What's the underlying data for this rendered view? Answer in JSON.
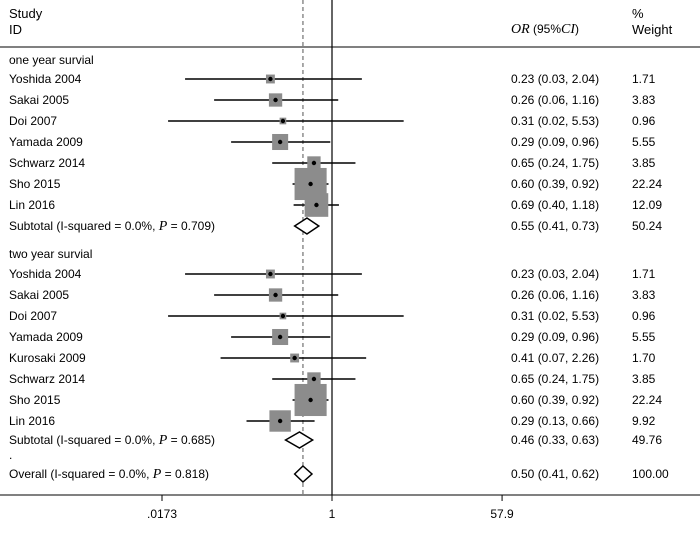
{
  "header": {
    "study_line1": "Study",
    "study_line2": "ID",
    "or_prefix": "OR",
    "ci_open": " (95%",
    "ci_italic": "CI",
    "ci_close": ")",
    "weight_line1": "%",
    "weight_line2": "Weight"
  },
  "chart_data": {
    "type": "forest",
    "scale": "log",
    "reference_line": 1,
    "pooled_line": 0.5,
    "axis_ticks": [
      {
        "value": 0.0173,
        "label": ".0173"
      },
      {
        "value": 1,
        "label": "1"
      },
      {
        "value": 57.9,
        "label": "57.9"
      }
    ],
    "xlim": [
      0.0173,
      57.9
    ],
    "groups": [
      {
        "title": "one year survial",
        "studies": [
          {
            "id": "Yoshida 2004",
            "or": 0.23,
            "lower": 0.03,
            "upper": 2.04,
            "ci_text": "0.23 (0.03, 2.04)",
            "weight": "1.71"
          },
          {
            "id": "Sakai 2005",
            "or": 0.26,
            "lower": 0.06,
            "upper": 1.16,
            "ci_text": "0.26 (0.06, 1.16)",
            "weight": "3.83"
          },
          {
            "id": "Doi 2007",
            "or": 0.31,
            "lower": 0.02,
            "upper": 5.53,
            "ci_text": "0.31 (0.02, 5.53)",
            "weight": "0.96"
          },
          {
            "id": "Yamada 2009",
            "or": 0.29,
            "lower": 0.09,
            "upper": 0.96,
            "ci_text": "0.29 (0.09, 0.96)",
            "weight": "5.55"
          },
          {
            "id": "Schwarz 2014",
            "or": 0.65,
            "lower": 0.24,
            "upper": 1.75,
            "ci_text": "0.65 (0.24, 1.75)",
            "weight": "3.85"
          },
          {
            "id": "Sho 2015",
            "or": 0.6,
            "lower": 0.39,
            "upper": 0.92,
            "ci_text": "0.60 (0.39, 0.92)",
            "weight": "22.24"
          },
          {
            "id": "Lin 2016",
            "or": 0.69,
            "lower": 0.4,
            "upper": 1.18,
            "ci_text": "0.69 (0.40, 1.18)",
            "weight": "12.09"
          }
        ],
        "subtotal": {
          "label_prefix": "Subtotal  (I-squared = 0.0%, ",
          "p_label": "P",
          "label_suffix": " = 0.709)",
          "or": 0.55,
          "lower": 0.41,
          "upper": 0.73,
          "ci_text": "0.55 (0.41, 0.73)",
          "weight": "50.24"
        }
      },
      {
        "title": "two year survial",
        "studies": [
          {
            "id": "Yoshida 2004",
            "or": 0.23,
            "lower": 0.03,
            "upper": 2.04,
            "ci_text": "0.23 (0.03, 2.04)",
            "weight": "1.71"
          },
          {
            "id": "Sakai 2005",
            "or": 0.26,
            "lower": 0.06,
            "upper": 1.16,
            "ci_text": "0.26 (0.06, 1.16)",
            "weight": "3.83"
          },
          {
            "id": "Doi 2007",
            "or": 0.31,
            "lower": 0.02,
            "upper": 5.53,
            "ci_text": "0.31 (0.02, 5.53)",
            "weight": "0.96"
          },
          {
            "id": "Yamada 2009",
            "or": 0.29,
            "lower": 0.09,
            "upper": 0.96,
            "ci_text": "0.29 (0.09, 0.96)",
            "weight": "5.55"
          },
          {
            "id": "Kurosaki 2009",
            "or": 0.41,
            "lower": 0.07,
            "upper": 2.26,
            "ci_text": "0.41 (0.07, 2.26)",
            "weight": "1.70"
          },
          {
            "id": "Schwarz 2014",
            "or": 0.65,
            "lower": 0.24,
            "upper": 1.75,
            "ci_text": "0.65 (0.24, 1.75)",
            "weight": "3.85"
          },
          {
            "id": "Sho 2015",
            "or": 0.6,
            "lower": 0.39,
            "upper": 0.92,
            "ci_text": "0.60 (0.39, 0.92)",
            "weight": "22.24"
          },
          {
            "id": "Lin 2016",
            "or": 0.29,
            "lower": 0.13,
            "upper": 0.66,
            "ci_text": "0.29 (0.13, 0.66)",
            "weight": "9.92"
          }
        ],
        "subtotal": {
          "label_prefix": "Subtotal  (I-squared = 0.0%, ",
          "p_label": "P",
          "label_suffix": " = 0.685)",
          "or": 0.46,
          "lower": 0.33,
          "upper": 0.63,
          "ci_text": "0.46 (0.33, 0.63)",
          "weight": "49.76"
        }
      }
    ],
    "separator_mark": ".",
    "overall": {
      "label_prefix": "Overall  (I-squared = 0.0%, ",
      "p_label": "P",
      "label_suffix": " = 0.818)",
      "or": 0.5,
      "lower": 0.41,
      "upper": 0.62,
      "ci_text": "0.50 (0.41, 0.62)",
      "weight": "100.00"
    },
    "colors": {
      "box": "#8c8c8c",
      "line": "#000000",
      "dash": "#555555"
    }
  }
}
